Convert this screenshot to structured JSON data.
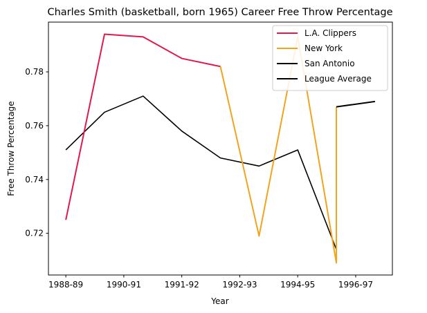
{
  "chart_data": {
    "type": "line",
    "title": "Charles Smith (basketball, born 1965) Career Free Throw Percentage",
    "xlabel": "Year",
    "ylabel": "Free Throw Percentage",
    "x_ticks": [
      "1988-89",
      "1990-91",
      "1991-92",
      "1992-93",
      "1994-95",
      "1996-97"
    ],
    "x_tick_positions": [
      0,
      1.5,
      3,
      4.5,
      6,
      7.5
    ],
    "xlim": [
      -0.45,
      8.45
    ],
    "ylim": [
      0.7045,
      0.7985
    ],
    "y_ticks": [
      0.72,
      0.74,
      0.76,
      0.78
    ],
    "y_tick_labels": [
      "0.72",
      "0.74",
      "0.76",
      "0.78"
    ],
    "grid": false,
    "legend_position": "upper right",
    "series": [
      {
        "name": "L.A. Clippers",
        "color": "#e3174b",
        "points": [
          [
            0,
            0.725
          ],
          [
            1,
            0.794
          ],
          [
            2,
            0.793
          ],
          [
            3,
            0.785
          ],
          [
            4,
            0.782
          ]
        ]
      },
      {
        "name": "New York",
        "color": "#f3a31b",
        "points": [
          [
            4,
            0.782
          ],
          [
            5,
            0.719
          ],
          [
            6,
            0.793
          ],
          [
            7,
            0.709
          ],
          [
            7,
            0.767
          ]
        ]
      },
      {
        "name": "San Antonio",
        "color": "#000000",
        "points": [
          [
            7,
            0.767
          ],
          [
            8,
            0.769
          ]
        ]
      },
      {
        "name": "League Average",
        "color": "#000000",
        "points": [
          [
            0,
            0.751
          ],
          [
            1,
            0.765
          ],
          [
            2,
            0.771
          ],
          [
            3,
            0.758
          ],
          [
            4,
            0.748
          ],
          [
            5,
            0.745
          ],
          [
            6,
            0.751
          ],
          [
            7,
            0.714
          ]
        ]
      }
    ]
  }
}
